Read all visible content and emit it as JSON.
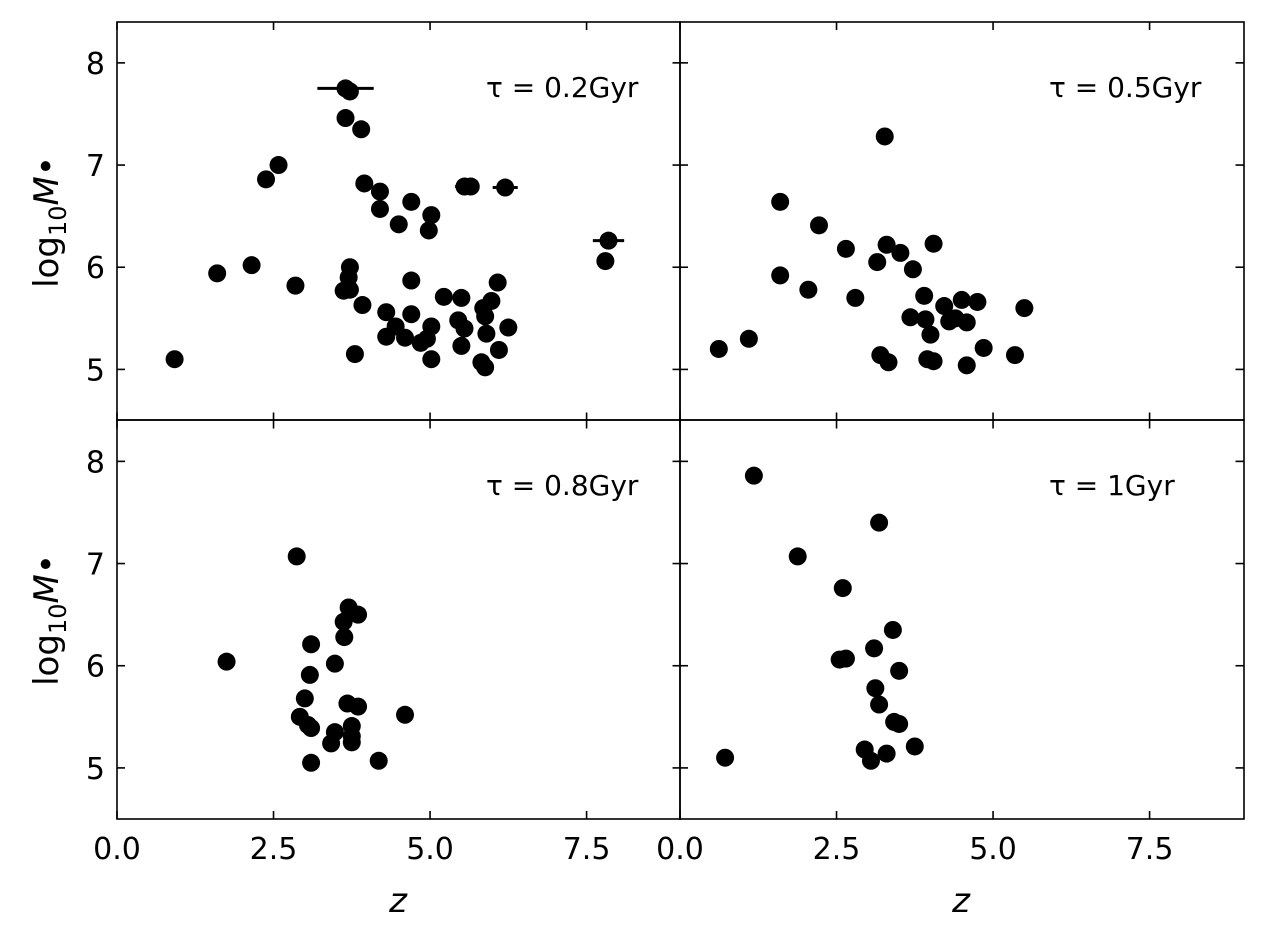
{
  "chart_data": {
    "type": "scatter",
    "layout": "2x2 grid, shared axes",
    "xlabel": "z",
    "ylabel": "log10 M•",
    "xlim": [
      0,
      9
    ],
    "ylim": [
      4.5,
      8.4
    ],
    "xticks": [
      0.0,
      2.5,
      5.0,
      7.5
    ],
    "xtick_labels": [
      "0.0",
      "2.5",
      "5.0",
      "7.5"
    ],
    "yticks": [
      5,
      6,
      7,
      8
    ],
    "ytick_labels": [
      "5",
      "6",
      "7",
      "8"
    ],
    "marker_color": "#000000",
    "panels": [
      {
        "label": "τ = 0.2Gyr",
        "points": [
          {
            "x": 3.65,
            "y": 7.75,
            "xerr": 0.45
          },
          {
            "x": 3.72,
            "y": 7.72
          },
          {
            "x": 3.65,
            "y": 7.46
          },
          {
            "x": 3.9,
            "y": 7.35
          },
          {
            "x": 2.58,
            "y": 7.0
          },
          {
            "x": 2.38,
            "y": 6.86
          },
          {
            "x": 3.95,
            "y": 6.82
          },
          {
            "x": 4.2,
            "y": 6.74
          },
          {
            "x": 4.2,
            "y": 6.57
          },
          {
            "x": 4.7,
            "y": 6.64
          },
          {
            "x": 4.5,
            "y": 6.42
          },
          {
            "x": 5.02,
            "y": 6.51
          },
          {
            "x": 4.98,
            "y": 6.36
          },
          {
            "x": 5.55,
            "y": 6.79,
            "xerr": 0.15
          },
          {
            "x": 5.65,
            "y": 6.79
          },
          {
            "x": 6.2,
            "y": 6.78,
            "xerr": 0.2
          },
          {
            "x": 7.85,
            "y": 6.26,
            "xerr": 0.25
          },
          {
            "x": 7.8,
            "y": 6.06
          },
          {
            "x": 1.6,
            "y": 5.94
          },
          {
            "x": 2.15,
            "y": 6.02
          },
          {
            "x": 2.85,
            "y": 5.82
          },
          {
            "x": 0.92,
            "y": 5.1
          },
          {
            "x": 3.72,
            "y": 6.0
          },
          {
            "x": 3.7,
            "y": 5.9
          },
          {
            "x": 3.62,
            "y": 5.77
          },
          {
            "x": 3.72,
            "y": 5.78
          },
          {
            "x": 3.92,
            "y": 5.63
          },
          {
            "x": 3.8,
            "y": 5.15
          },
          {
            "x": 4.7,
            "y": 5.87
          },
          {
            "x": 4.3,
            "y": 5.56
          },
          {
            "x": 4.3,
            "y": 5.32
          },
          {
            "x": 4.45,
            "y": 5.42
          },
          {
            "x": 4.6,
            "y": 5.31
          },
          {
            "x": 4.7,
            "y": 5.54
          },
          {
            "x": 4.85,
            "y": 5.26
          },
          {
            "x": 4.95,
            "y": 5.3
          },
          {
            "x": 5.02,
            "y": 5.42
          },
          {
            "x": 5.02,
            "y": 5.1
          },
          {
            "x": 5.22,
            "y": 5.71
          },
          {
            "x": 5.5,
            "y": 5.7
          },
          {
            "x": 5.45,
            "y": 5.48
          },
          {
            "x": 5.55,
            "y": 5.4
          },
          {
            "x": 5.5,
            "y": 5.23
          },
          {
            "x": 5.85,
            "y": 5.6
          },
          {
            "x": 5.88,
            "y": 5.52
          },
          {
            "x": 5.98,
            "y": 5.67
          },
          {
            "x": 5.9,
            "y": 5.35
          },
          {
            "x": 6.08,
            "y": 5.85
          },
          {
            "x": 6.25,
            "y": 5.41
          },
          {
            "x": 6.1,
            "y": 5.19
          },
          {
            "x": 5.82,
            "y": 5.07
          },
          {
            "x": 5.88,
            "y": 5.02,
            "xerr": 0.12
          }
        ]
      },
      {
        "label": "τ = 0.5Gyr",
        "points": [
          {
            "x": 3.27,
            "y": 7.28
          },
          {
            "x": 1.6,
            "y": 6.64
          },
          {
            "x": 2.22,
            "y": 6.41
          },
          {
            "x": 2.65,
            "y": 6.18
          },
          {
            "x": 3.3,
            "y": 6.22
          },
          {
            "x": 3.52,
            "y": 6.14
          },
          {
            "x": 4.05,
            "y": 6.23
          },
          {
            "x": 3.15,
            "y": 6.05
          },
          {
            "x": 3.72,
            "y": 5.98
          },
          {
            "x": 1.6,
            "y": 5.92
          },
          {
            "x": 2.05,
            "y": 5.78
          },
          {
            "x": 2.8,
            "y": 5.7
          },
          {
            "x": 3.9,
            "y": 5.72
          },
          {
            "x": 4.22,
            "y": 5.62
          },
          {
            "x": 4.5,
            "y": 5.68
          },
          {
            "x": 4.75,
            "y": 5.66
          },
          {
            "x": 5.5,
            "y": 5.6
          },
          {
            "x": 3.68,
            "y": 5.51
          },
          {
            "x": 3.92,
            "y": 5.49
          },
          {
            "x": 4.3,
            "y": 5.47
          },
          {
            "x": 4.4,
            "y": 5.5
          },
          {
            "x": 4.58,
            "y": 5.46
          },
          {
            "x": 4.0,
            "y": 5.34
          },
          {
            "x": 4.85,
            "y": 5.21
          },
          {
            "x": 3.2,
            "y": 5.14
          },
          {
            "x": 3.33,
            "y": 5.07
          },
          {
            "x": 3.95,
            "y": 5.1
          },
          {
            "x": 4.05,
            "y": 5.08
          },
          {
            "x": 4.58,
            "y": 5.04
          },
          {
            "x": 5.35,
            "y": 5.14
          },
          {
            "x": 0.62,
            "y": 5.2
          },
          {
            "x": 1.1,
            "y": 5.3
          }
        ]
      },
      {
        "label": "τ = 0.8Gyr",
        "points": [
          {
            "x": 2.87,
            "y": 7.07
          },
          {
            "x": 3.7,
            "y": 6.57
          },
          {
            "x": 3.62,
            "y": 6.43
          },
          {
            "x": 3.85,
            "y": 6.5
          },
          {
            "x": 3.63,
            "y": 6.28
          },
          {
            "x": 3.1,
            "y": 6.21
          },
          {
            "x": 1.75,
            "y": 6.04
          },
          {
            "x": 3.48,
            "y": 6.02
          },
          {
            "x": 3.08,
            "y": 5.91
          },
          {
            "x": 3.0,
            "y": 5.68
          },
          {
            "x": 3.68,
            "y": 5.63
          },
          {
            "x": 3.85,
            "y": 5.6
          },
          {
            "x": 2.92,
            "y": 5.5
          },
          {
            "x": 3.05,
            "y": 5.42
          },
          {
            "x": 3.1,
            "y": 5.39
          },
          {
            "x": 3.75,
            "y": 5.41
          },
          {
            "x": 4.6,
            "y": 5.52
          },
          {
            "x": 3.48,
            "y": 5.35
          },
          {
            "x": 3.75,
            "y": 5.31
          },
          {
            "x": 3.42,
            "y": 5.24
          },
          {
            "x": 3.75,
            "y": 5.25
          },
          {
            "x": 3.1,
            "y": 5.05
          },
          {
            "x": 4.18,
            "y": 5.07
          }
        ]
      },
      {
        "label": "τ = 1Gyr",
        "points": [
          {
            "x": 1.18,
            "y": 7.86
          },
          {
            "x": 3.18,
            "y": 7.4
          },
          {
            "x": 1.88,
            "y": 7.07
          },
          {
            "x": 2.6,
            "y": 6.76
          },
          {
            "x": 3.4,
            "y": 6.35
          },
          {
            "x": 3.1,
            "y": 6.17
          },
          {
            "x": 2.55,
            "y": 6.06
          },
          {
            "x": 2.65,
            "y": 6.07
          },
          {
            "x": 3.5,
            "y": 5.95
          },
          {
            "x": 3.12,
            "y": 5.78
          },
          {
            "x": 3.18,
            "y": 5.62
          },
          {
            "x": 3.42,
            "y": 5.45
          },
          {
            "x": 3.5,
            "y": 5.43
          },
          {
            "x": 2.95,
            "y": 5.18
          },
          {
            "x": 3.75,
            "y": 5.21
          },
          {
            "x": 3.05,
            "y": 5.07
          },
          {
            "x": 3.3,
            "y": 5.14
          },
          {
            "x": 0.72,
            "y": 5.1
          }
        ]
      }
    ]
  }
}
